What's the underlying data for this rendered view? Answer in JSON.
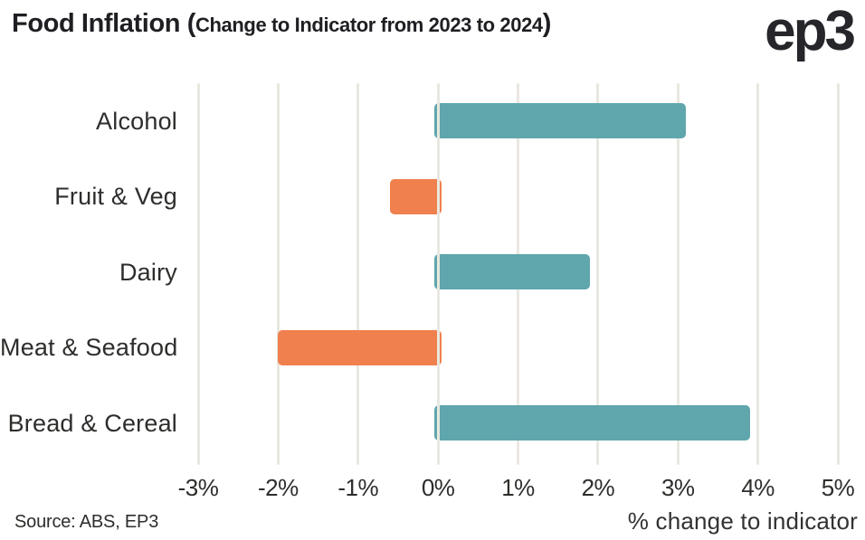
{
  "header": {
    "title_main": "Food Inflation (",
    "title_sub": "Change to Indicator from 2023 to 2024",
    "title_close": ")",
    "logo_text": "ep3"
  },
  "footer": {
    "source_note": "Source: ABS, EP3"
  },
  "chart_data": {
    "type": "bar",
    "orientation": "horizontal",
    "title": "Food Inflation (Change to Indicator from 2023 to 2024)",
    "categories": [
      "Alcohol",
      "Fruit & Veg",
      "Dairy",
      "Meat & Seafood",
      "Bread & Cereal"
    ],
    "values": [
      3.1,
      -0.6,
      1.9,
      -2.0,
      3.9
    ],
    "unit": "%",
    "xlabel": "% change to indicator",
    "ylabel": "",
    "xlim": [
      -3,
      5
    ],
    "xticks": [
      "-3%",
      "-2%",
      "-1%",
      "0%",
      "1%",
      "2%",
      "3%",
      "4%",
      "5%"
    ],
    "grid": true,
    "legend_position": "none",
    "positive_color": "#5FA6AD",
    "negative_color": "#F0804E",
    "gridline_color": "#E9E8E0",
    "text_color": "#2E2D2B"
  }
}
